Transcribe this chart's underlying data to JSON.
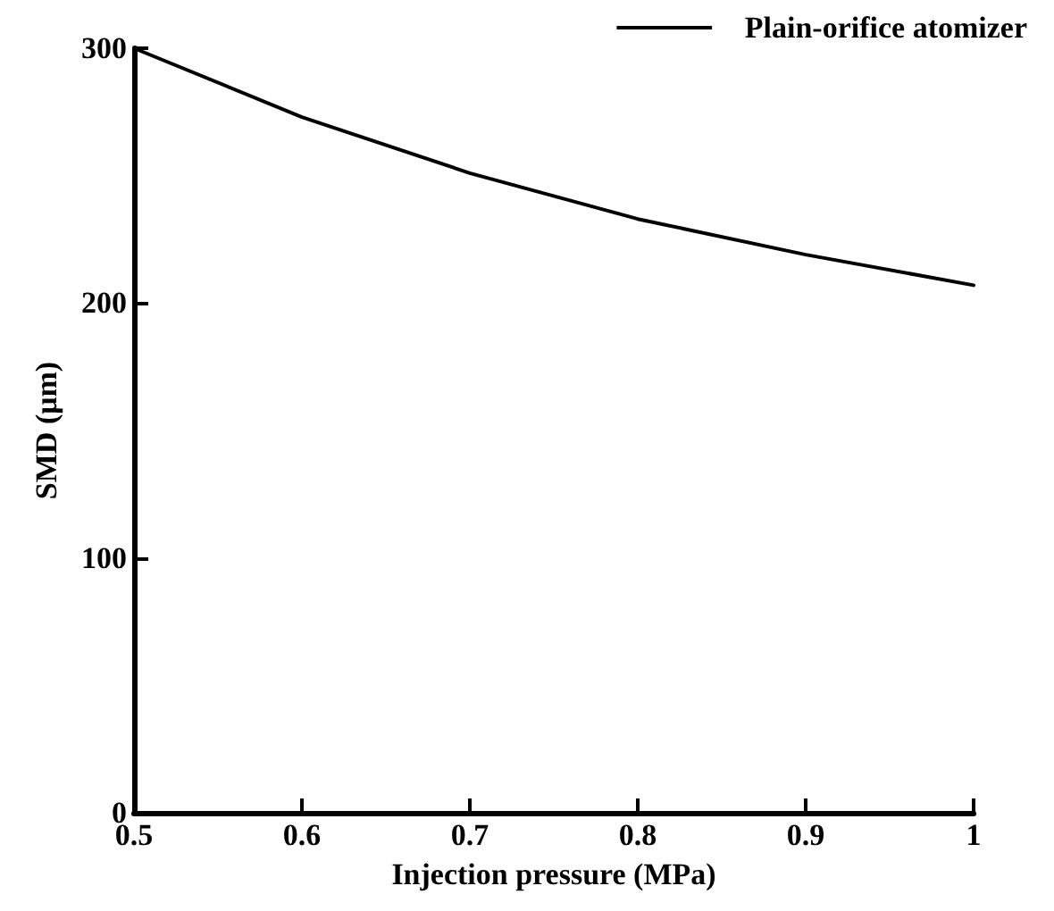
{
  "chart_data": {
    "type": "line",
    "xlabel": "Injection pressure (MPa)",
    "ylabel": "SMD (μm)",
    "x": [
      0.5,
      0.6,
      0.7,
      0.8,
      0.9,
      1
    ],
    "series": [
      {
        "name": "Plain-orifice atomizer",
        "color": "#000000",
        "values": [
          300,
          273,
          251,
          233,
          219,
          207
        ]
      }
    ],
    "xlim": [
      0.5,
      1
    ],
    "xticks": [
      0.5,
      0.6,
      0.7,
      0.8,
      0.9,
      1
    ],
    "ylim": [
      0,
      300
    ],
    "yticks": [
      0,
      100,
      200,
      300
    ],
    "grid": false,
    "legend": "top right",
    "marker": "none",
    "line_style": "solid"
  }
}
